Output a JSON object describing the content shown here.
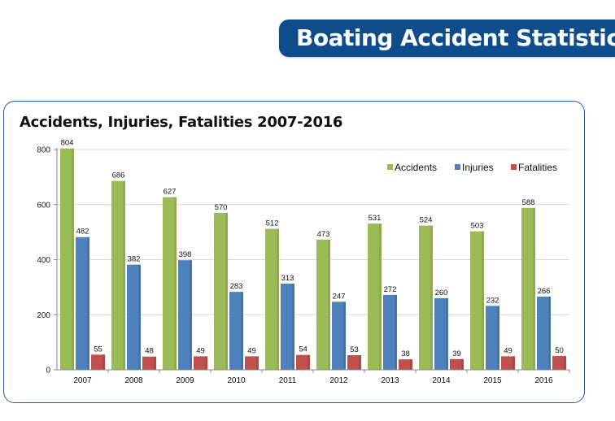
{
  "header": {
    "title": "Boating Accident Statistics"
  },
  "colors": {
    "header_bg": "#0f4c8c",
    "accidents": "#9bbb59",
    "injuries": "#4f81bd",
    "fatalities": "#c0504d",
    "card_border": "#2d5d96"
  },
  "chart_data": {
    "type": "bar",
    "title": "Accidents, Injuries, Fatalities 2007-2016",
    "xlabel": "",
    "ylabel": "",
    "categories": [
      "2007",
      "2008",
      "2009",
      "2010",
      "2011",
      "2012",
      "2013",
      "2014",
      "2015",
      "2016"
    ],
    "series": [
      {
        "name": "Accidents",
        "values": [
          804,
          686,
          627,
          570,
          512,
          473,
          531,
          524,
          503,
          588
        ]
      },
      {
        "name": "Injuries",
        "values": [
          482,
          382,
          398,
          283,
          313,
          247,
          272,
          260,
          232,
          266
        ]
      },
      {
        "name": "Fatalities",
        "values": [
          55,
          48,
          49,
          49,
          54,
          53,
          38,
          39,
          49,
          50
        ]
      }
    ],
    "ylim": [
      0,
      800
    ],
    "yticks": [
      0,
      200,
      400,
      600,
      800
    ],
    "grid": true,
    "legend": "top-right",
    "data_labels": true
  }
}
